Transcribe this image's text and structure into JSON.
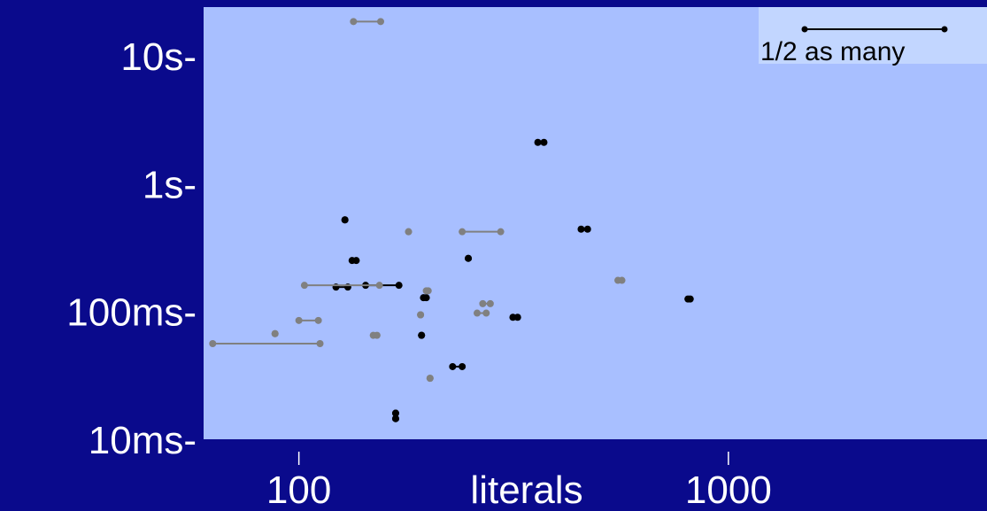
{
  "chart_data": {
    "type": "scatter",
    "xlabel": "literals",
    "ylabel": "",
    "x_scale": "log",
    "y_scale": "log",
    "xlim": [
      60,
      4000
    ],
    "ylim": [
      0.01,
      24
    ],
    "x_ticks": [
      {
        "value": 100,
        "label": "100"
      },
      {
        "value": 1000,
        "label": "1000"
      }
    ],
    "y_ticks": [
      {
        "value": 10,
        "label": "10s-"
      },
      {
        "value": 1,
        "label": "1s-"
      },
      {
        "value": 0.1,
        "label": "100ms-"
      },
      {
        "value": 0.01,
        "label": "10ms-"
      }
    ],
    "legend": {
      "label": "1/2 as many",
      "position": "top-right"
    },
    "colors": {
      "background": "#0a0a8c",
      "plot_area": "#a8bfff",
      "legend_box": "#c2d6ff",
      "series_black": "#000000",
      "series_gray": "#808080"
    },
    "series": [
      {
        "color": "black",
        "points": [
          {
            "x1": 128,
            "x2": 128,
            "y": 0.52
          },
          {
            "x1": 133,
            "x2": 136,
            "y": 0.25
          },
          {
            "x1": 122,
            "x2": 130,
            "y": 0.155
          },
          {
            "x1": 143,
            "x2": 171,
            "y": 0.16
          },
          {
            "x1": 168,
            "x2": 168,
            "y": 0.016
          },
          {
            "x1": 168,
            "x2": 168,
            "y": 0.0145
          },
          {
            "x1": 195,
            "x2": 198,
            "y": 0.128
          },
          {
            "x1": 193,
            "x2": 193,
            "y": 0.065
          },
          {
            "x1": 228,
            "x2": 240,
            "y": 0.037
          },
          {
            "x1": 248,
            "x2": 248,
            "y": 0.26
          },
          {
            "x1": 315,
            "x2": 323,
            "y": 0.09
          },
          {
            "x1": 360,
            "x2": 372,
            "y": 2.1
          },
          {
            "x1": 454,
            "x2": 470,
            "y": 0.44
          },
          {
            "x1": 805,
            "x2": 815,
            "y": 0.125
          }
        ]
      },
      {
        "color": "gray",
        "points": [
          {
            "x1": 134,
            "x2": 155,
            "y": 18.5
          },
          {
            "x1": 63,
            "x2": 112,
            "y": 0.056
          },
          {
            "x1": 88,
            "x2": 88,
            "y": 0.067
          },
          {
            "x1": 100,
            "x2": 111,
            "y": 0.085
          },
          {
            "x1": 103,
            "x2": 154,
            "y": 0.16
          },
          {
            "x1": 149,
            "x2": 152,
            "y": 0.065
          },
          {
            "x1": 180,
            "x2": 180,
            "y": 0.42
          },
          {
            "x1": 192,
            "x2": 192,
            "y": 0.094
          },
          {
            "x1": 198,
            "x2": 200,
            "y": 0.145
          },
          {
            "x1": 202,
            "x2": 202,
            "y": 0.03
          },
          {
            "x1": 240,
            "x2": 295,
            "y": 0.42
          },
          {
            "x1": 260,
            "x2": 273,
            "y": 0.097
          },
          {
            "x1": 268,
            "x2": 279,
            "y": 0.115
          },
          {
            "x1": 553,
            "x2": 565,
            "y": 0.175
          }
        ]
      }
    ]
  }
}
